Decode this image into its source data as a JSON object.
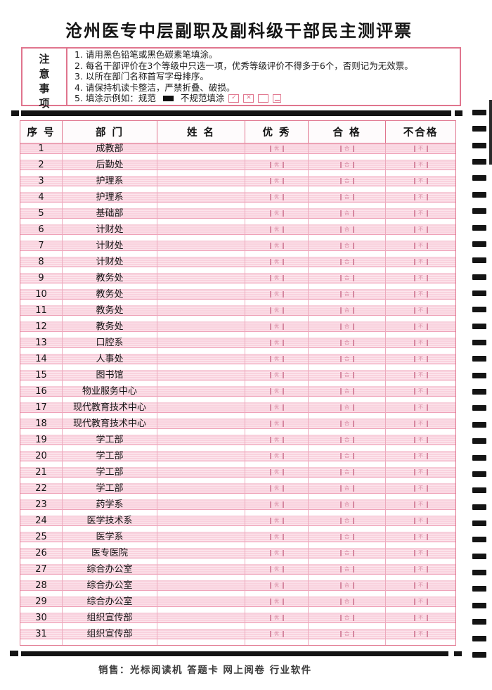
{
  "title": "沧州医专中层副职及副科级干部民主测评票",
  "notice": {
    "label_chars": [
      "注",
      "意",
      "事",
      "项"
    ],
    "items": [
      "1. 请用黑色铅笔或黑色碳素笔填涂。",
      "2. 每名干部评价在3个等级中只选一项，优秀等级评价不得多于6个，否则记为无效票。",
      "3. 以所在部门名称首写字母排序。",
      "4. 请保持机读卡整洁，严禁折叠、破损。"
    ],
    "example": {
      "prefix": "5. 填涂示例如：规范",
      "bad_label": "不规范填涂",
      "bad_marks": [
        {
          "name": "check-mark",
          "glyph": "✓"
        },
        {
          "name": "cross-mark",
          "glyph": "✕"
        },
        {
          "name": "empty-box",
          "glyph": ""
        },
        {
          "name": "half-fill",
          "glyph": "▁"
        }
      ]
    }
  },
  "table": {
    "headers": [
      "序  号",
      "部  门",
      "姓  名",
      "优  秀",
      "合  格",
      "不合格"
    ],
    "bubble_labels": [
      "优",
      "合",
      "不"
    ],
    "rows": [
      {
        "no": "1",
        "dept": "成教部"
      },
      {
        "no": "2",
        "dept": "后勤处"
      },
      {
        "no": "3",
        "dept": "护理系"
      },
      {
        "no": "4",
        "dept": "护理系"
      },
      {
        "no": "5",
        "dept": "基础部"
      },
      {
        "no": "6",
        "dept": "计财处"
      },
      {
        "no": "7",
        "dept": "计财处"
      },
      {
        "no": "8",
        "dept": "计财处"
      },
      {
        "no": "9",
        "dept": "教务处"
      },
      {
        "no": "10",
        "dept": "教务处"
      },
      {
        "no": "11",
        "dept": "教务处"
      },
      {
        "no": "12",
        "dept": "教务处"
      },
      {
        "no": "13",
        "dept": "口腔系"
      },
      {
        "no": "14",
        "dept": "人事处"
      },
      {
        "no": "15",
        "dept": "图书馆"
      },
      {
        "no": "16",
        "dept": "物业服务中心"
      },
      {
        "no": "17",
        "dept": "现代教育技术中心"
      },
      {
        "no": "18",
        "dept": "现代教育技术中心"
      },
      {
        "no": "19",
        "dept": "学工部"
      },
      {
        "no": "20",
        "dept": "学工部"
      },
      {
        "no": "21",
        "dept": "学工部"
      },
      {
        "no": "22",
        "dept": "学工部"
      },
      {
        "no": "23",
        "dept": "药学系"
      },
      {
        "no": "24",
        "dept": "医学技术系"
      },
      {
        "no": "25",
        "dept": "医学系"
      },
      {
        "no": "26",
        "dept": "医专医院"
      },
      {
        "no": "27",
        "dept": "综合办公室"
      },
      {
        "no": "28",
        "dept": "综合办公室"
      },
      {
        "no": "29",
        "dept": "综合办公室"
      },
      {
        "no": "30",
        "dept": "组织宣传部"
      },
      {
        "no": "31",
        "dept": "组织宣传部"
      }
    ]
  },
  "omr": {
    "timing_marks_count": 34
  },
  "footer": {
    "text": "销售：光标阅读机  答题卡  网上阅卷  行业软件"
  },
  "colors": {
    "border_pink": "#e0758e",
    "row_band_pink": "#f9d2de",
    "bubble_pink": "#d687a0",
    "mark_black": "#141414"
  }
}
